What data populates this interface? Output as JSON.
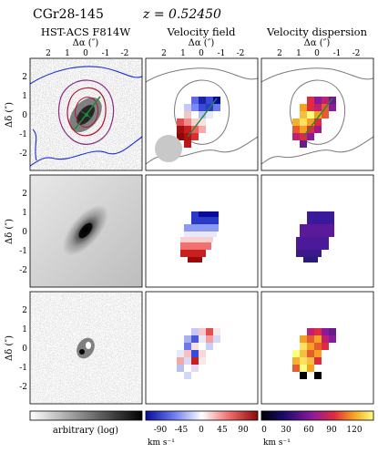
{
  "header": {
    "object_name": "CGr28-145",
    "redshift_label": "z = 0.52450"
  },
  "columns": [
    {
      "title": "HST-ACS F814W",
      "xlabel": "Δα (″)"
    },
    {
      "title": "Velocity field",
      "xlabel": "Δα (″)"
    },
    {
      "title": "Velocity dispersion",
      "xlabel": "Δα (″)"
    }
  ],
  "ylabel": "Δδ (″)",
  "axis_ticks": [
    "2",
    "1",
    "0",
    "-1",
    "-2"
  ],
  "colorbars": [
    {
      "label": "arbitrary (log)",
      "ticks": [],
      "unit": ""
    },
    {
      "label": "",
      "ticks": [
        "-90",
        "-45",
        "0",
        "45",
        "90"
      ],
      "unit": "km s⁻¹"
    },
    {
      "label": "",
      "ticks": [
        "0",
        "30",
        "60",
        "90",
        "120"
      ],
      "unit": "km s⁻¹"
    }
  ],
  "colors": {
    "contour_red": "#b0103a",
    "contour_purple": "#8a2b8a",
    "contour_blue": "#1a2fd6",
    "major_axis_green": "#1c8a3a",
    "psf_gray": "#c8c8c8",
    "contour_gray": "#7a7a7a"
  },
  "chart_data": {
    "type": "heatmap",
    "panels": [
      {
        "row": 1,
        "col": 1,
        "content": "HST image with intensity contours"
      },
      {
        "row": 1,
        "col": 2,
        "content": "observed velocity field"
      },
      {
        "row": 1,
        "col": 3,
        "content": "observed velocity dispersion"
      },
      {
        "row": 2,
        "col": 1,
        "content": "model image"
      },
      {
        "row": 2,
        "col": 2,
        "content": "model velocity field"
      },
      {
        "row": 2,
        "col": 3,
        "content": "model velocity dispersion"
      },
      {
        "row": 3,
        "col": 1,
        "content": "image residual"
      },
      {
        "row": 3,
        "col": 2,
        "content": "velocity residual"
      },
      {
        "row": 3,
        "col": 3,
        "content": "dispersion residual"
      }
    ],
    "xlim": [
      3,
      -3
    ],
    "ylim": [
      -3,
      3
    ],
    "velocity_range": [
      -100,
      100
    ],
    "dispersion_range": [
      0,
      140
    ]
  }
}
